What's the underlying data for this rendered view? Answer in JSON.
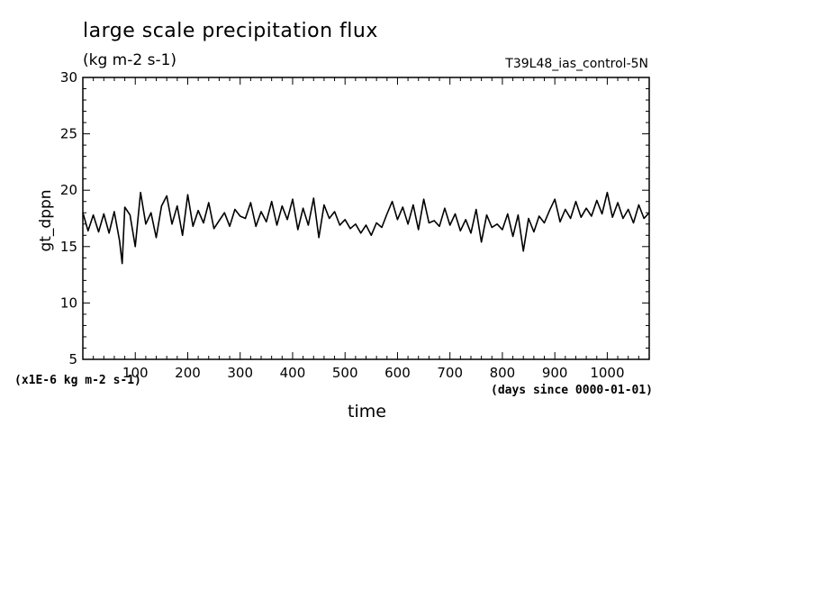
{
  "header": {
    "title": "large scale precipitation flux",
    "units": "(kg m-2 s-1)",
    "run_name": "T39L48_ias_control-5N"
  },
  "footer": {
    "scale_note": "(x1E-6 kg m-2 s-1)",
    "x_units": "(days since 0000-01-01)"
  },
  "chart_data": {
    "type": "line",
    "title": "large scale precipitation flux",
    "subtitle": "(kg m-2 s-1)",
    "xlabel": "time",
    "ylabel": "gt_dppn",
    "xlim": [
      0,
      1080
    ],
    "ylim": [
      5,
      30
    ],
    "x_ticks": [
      100,
      200,
      300,
      400,
      500,
      600,
      700,
      800,
      900,
      1000
    ],
    "y_ticks": [
      5,
      10,
      15,
      20,
      25,
      30
    ],
    "grid": false,
    "series": [
      {
        "x": [
          0,
          10,
          20,
          30,
          40,
          50,
          60,
          70,
          75,
          80,
          90,
          100,
          110,
          120,
          130,
          140,
          150,
          160,
          170,
          180,
          190,
          200,
          210,
          220,
          230,
          240,
          250,
          260,
          270,
          280,
          290,
          300,
          310,
          320,
          330,
          340,
          350,
          360,
          370,
          380,
          390,
          400,
          410,
          420,
          430,
          440,
          450,
          460,
          470,
          480,
          490,
          500,
          510,
          520,
          530,
          540,
          550,
          560,
          570,
          580,
          590,
          600,
          610,
          620,
          630,
          640,
          650,
          660,
          670,
          680,
          690,
          700,
          710,
          720,
          730,
          740,
          750,
          760,
          770,
          780,
          790,
          800,
          810,
          820,
          830,
          840,
          850,
          860,
          870,
          880,
          890,
          900,
          910,
          920,
          930,
          940,
          950,
          960,
          970,
          980,
          990,
          1000,
          1010,
          1020,
          1030,
          1040,
          1050,
          1060,
          1070,
          1080
        ],
        "y": [
          18.0,
          16.4,
          17.8,
          16.3,
          17.9,
          16.2,
          18.1,
          15.5,
          13.5,
          18.5,
          17.8,
          15.0,
          19.8,
          17.0,
          18.0,
          15.8,
          18.6,
          19.5,
          17.0,
          18.6,
          16.0,
          19.6,
          16.8,
          18.2,
          17.1,
          18.9,
          16.6,
          17.3,
          18.0,
          16.8,
          18.3,
          17.7,
          17.5,
          18.9,
          16.8,
          18.1,
          17.2,
          19.0,
          16.9,
          18.6,
          17.4,
          19.2,
          16.5,
          18.4,
          16.9,
          19.3,
          15.8,
          18.7,
          17.5,
          18.1,
          16.9,
          17.4,
          16.6,
          17.0,
          16.2,
          16.9,
          16.0,
          17.1,
          16.7,
          17.9,
          19.0,
          17.4,
          18.5,
          17.0,
          18.7,
          16.5,
          19.2,
          17.1,
          17.3,
          16.8,
          18.4,
          16.9,
          17.9,
          16.4,
          17.4,
          16.2,
          18.3,
          15.4,
          17.8,
          16.7,
          17.0,
          16.5,
          17.9,
          15.9,
          17.8,
          14.6,
          17.5,
          16.3,
          17.7,
          17.1,
          18.2,
          19.2,
          17.2,
          18.3,
          17.5,
          19.0,
          17.6,
          18.4,
          17.7,
          19.1,
          17.9,
          19.8,
          17.6,
          18.9,
          17.5,
          18.3,
          17.1,
          18.7,
          17.5,
          18.0
        ]
      }
    ]
  }
}
